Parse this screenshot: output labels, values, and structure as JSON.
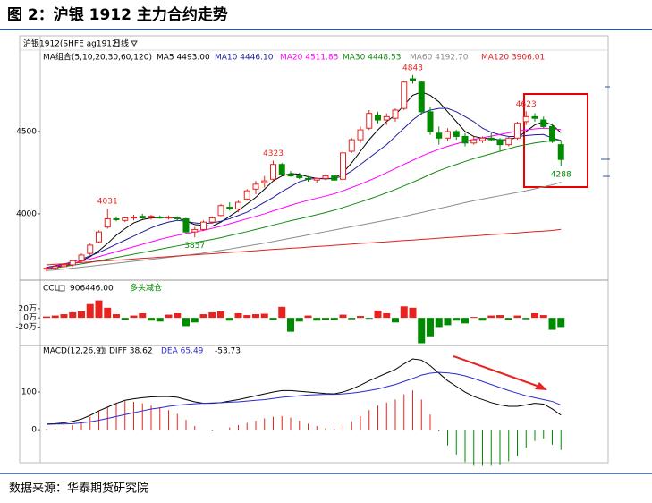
{
  "figure_title": "图 2：沪银 1912 主力合约走势",
  "source": "数据来源：华泰期货研究院",
  "chart_data": [
    {
      "type": "candlestick",
      "header": "沪银1912(SHFE ag1912)",
      "period": "日线",
      "legend_title": "MA组合(5,10,20,30,60,120)",
      "up_color": "#e8231e",
      "down_color": "#008a00",
      "open": [
        3665,
        3670,
        3680,
        3690,
        3715,
        3760,
        3830,
        3920,
        3970,
        3960,
        3975,
        3985,
        3980,
        3980,
        3975,
        3975,
        3970,
        3890,
        3905,
        3950,
        3990,
        4040,
        4030,
        4090,
        4150,
        4190,
        4210,
        4300,
        4240,
        4230,
        4215,
        4205,
        4215,
        4230,
        4210,
        4380,
        4450,
        4520,
        4600,
        4570,
        4580,
        4640,
        4820,
        4800,
        4620,
        4490,
        4460,
        4500,
        4470,
        4430,
        4445,
        4460,
        4450,
        4420,
        4460,
        4560,
        4590,
        4570,
        4530,
        4420
      ],
      "high": [
        3680,
        3690,
        3700,
        3720,
        3760,
        3820,
        3900,
        4031,
        3985,
        3980,
        3995,
        4000,
        3995,
        3990,
        3990,
        3985,
        3975,
        3920,
        3960,
        3985,
        4060,
        4070,
        4080,
        4150,
        4200,
        4230,
        4323,
        4310,
        4260,
        4250,
        4230,
        4220,
        4240,
        4240,
        4380,
        4460,
        4530,
        4630,
        4620,
        4610,
        4640,
        4810,
        4843,
        4810,
        4650,
        4530,
        4520,
        4510,
        4490,
        4470,
        4470,
        4490,
        4460,
        4470,
        4560,
        4623,
        4610,
        4590,
        4550,
        4440
      ],
      "low": [
        3650,
        3655,
        3670,
        3680,
        3705,
        3750,
        3820,
        3910,
        3955,
        3950,
        3960,
        3970,
        3965,
        3970,
        3965,
        3960,
        3880,
        3857,
        3895,
        3940,
        3985,
        4020,
        4010,
        4080,
        4120,
        4160,
        4200,
        4230,
        4225,
        4210,
        4195,
        4190,
        4205,
        4200,
        4200,
        4370,
        4430,
        4510,
        4550,
        4540,
        4560,
        4630,
        4790,
        4600,
        4480,
        4420,
        4440,
        4450,
        4410,
        4420,
        4430,
        4440,
        4380,
        4410,
        4450,
        4540,
        4560,
        4520,
        4430,
        4288
      ],
      "close": [
        3670,
        3680,
        3690,
        3715,
        3750,
        3810,
        3890,
        3970,
        3965,
        3975,
        3980,
        3975,
        3985,
        3975,
        3980,
        3970,
        3890,
        3905,
        3950,
        3975,
        4050,
        4030,
        4070,
        4140,
        4180,
        4200,
        4300,
        4240,
        4230,
        4220,
        4210,
        4215,
        4230,
        4205,
        4370,
        4450,
        4510,
        4610,
        4570,
        4590,
        4630,
        4800,
        4810,
        4620,
        4500,
        4460,
        4500,
        4470,
        4430,
        4450,
        4460,
        4450,
        4420,
        4460,
        4550,
        4590,
        4580,
        4530,
        4440,
        4330
      ],
      "labeled_points": [
        {
          "index": 7,
          "field": "high"
        },
        {
          "index": 17,
          "field": "low"
        },
        {
          "index": 26,
          "field": "high"
        },
        {
          "index": 42,
          "field": "high"
        },
        {
          "index": 55,
          "field": "high"
        },
        {
          "index": 59,
          "field": "low"
        }
      ],
      "series": [
        {
          "name": "MA5 4493.00",
          "color": "#000000",
          "values": [
            3670,
            3675,
            3685,
            3695,
            3715,
            3740,
            3775,
            3820,
            3870,
            3910,
            3945,
            3965,
            3975,
            3978,
            3978,
            3975,
            3955,
            3935,
            3930,
            3925,
            3950,
            3985,
            4020,
            4060,
            4100,
            4150,
            4200,
            4230,
            4245,
            4240,
            4225,
            4215,
            4212,
            4215,
            4250,
            4310,
            4380,
            4450,
            4510,
            4560,
            4600,
            4660,
            4720,
            4740,
            4720,
            4680,
            4620,
            4560,
            4500,
            4470,
            4460,
            4455,
            4450,
            4450,
            4465,
            4500,
            4540,
            4560,
            4540,
            4493
          ]
        },
        {
          "name": "MA10 4446.10",
          "color": "#1c1c9c",
          "values": [
            3675,
            3685,
            3695,
            3710,
            3725,
            3745,
            3765,
            3790,
            3815,
            3840,
            3865,
            3890,
            3915,
            3935,
            3950,
            3960,
            3955,
            3945,
            3940,
            3945,
            3955,
            3970,
            3990,
            4010,
            4040,
            4070,
            4100,
            4135,
            4165,
            4195,
            4210,
            4215,
            4215,
            4215,
            4230,
            4260,
            4300,
            4340,
            4380,
            4420,
            4470,
            4520,
            4570,
            4610,
            4630,
            4640,
            4640,
            4620,
            4590,
            4560,
            4520,
            4495,
            4480,
            4470,
            4470,
            4475,
            4480,
            4482,
            4460,
            4446.1
          ]
        },
        {
          "name": "MA20 4511.85",
          "color": "#ff00ff",
          "values": [
            3670,
            3680,
            3690,
            3700,
            3712,
            3725,
            3740,
            3755,
            3770,
            3785,
            3800,
            3815,
            3830,
            3845,
            3858,
            3870,
            3880,
            3890,
            3900,
            3912,
            3925,
            3940,
            3955,
            3970,
            3985,
            4000,
            4018,
            4035,
            4052,
            4068,
            4082,
            4095,
            4108,
            4122,
            4140,
            4160,
            4180,
            4202,
            4225,
            4250,
            4275,
            4300,
            4325,
            4350,
            4372,
            4392,
            4410,
            4425,
            4440,
            4452,
            4462,
            4472,
            4482,
            4492,
            4502,
            4510,
            4516,
            4520,
            4516,
            4511.85
          ]
        },
        {
          "name": "MA30 4448.53",
          "color": "#138a13",
          "values": [
            3665,
            3672,
            3680,
            3688,
            3696,
            3705,
            3715,
            3725,
            3735,
            3745,
            3755,
            3765,
            3775,
            3785,
            3795,
            3805,
            3815,
            3825,
            3835,
            3845,
            3855,
            3868,
            3880,
            3892,
            3905,
            3918,
            3932,
            3945,
            3958,
            3970,
            3982,
            3995,
            4008,
            4022,
            4038,
            4055,
            4072,
            4090,
            4108,
            4128,
            4148,
            4170,
            4192,
            4215,
            4240,
            4262,
            4282,
            4300,
            4318,
            4335,
            4350,
            4365,
            4380,
            4395,
            4410,
            4420,
            4430,
            4438,
            4444,
            4448.53
          ]
        },
        {
          "name": "MA60 4192.70",
          "color": "#8c8c8c",
          "values": [
            3655,
            3660,
            3665,
            3670,
            3676,
            3682,
            3688,
            3694,
            3700,
            3706,
            3712,
            3718,
            3724,
            3730,
            3736,
            3742,
            3748,
            3755,
            3762,
            3770,
            3778,
            3786,
            3795,
            3804,
            3813,
            3822,
            3832,
            3842,
            3852,
            3862,
            3872,
            3882,
            3892,
            3902,
            3912,
            3922,
            3932,
            3942,
            3952,
            3962,
            3972,
            3984,
            3996,
            4008,
            4020,
            4032,
            4044,
            4056,
            4068,
            4080,
            4090,
            4100,
            4110,
            4120,
            4130,
            4140,
            4152,
            4164,
            4176,
            4192.7
          ]
        },
        {
          "name": "MA120 3906.01",
          "color": "#e02020",
          "values": [
            3690,
            3694,
            3697,
            3701,
            3704,
            3708,
            3712,
            3715,
            3719,
            3722,
            3726,
            3730,
            3733,
            3737,
            3740,
            3744,
            3748,
            3751,
            3755,
            3758,
            3762,
            3766,
            3769,
            3773,
            3776,
            3780,
            3784,
            3787,
            3791,
            3794,
            3798,
            3802,
            3805,
            3809,
            3812,
            3816,
            3820,
            3823,
            3827,
            3830,
            3834,
            3838,
            3841,
            3845,
            3848,
            3852,
            3856,
            3859,
            3863,
            3866,
            3870,
            3874,
            3877,
            3881,
            3884,
            3888,
            3892,
            3895,
            3899,
            3906.01
          ]
        }
      ],
      "ylim": [
        3641,
        5081
      ],
      "yticks": [
        4000,
        4500
      ]
    },
    {
      "type": "bar",
      "header": "CCL",
      "header_value": "906446.00",
      "annotation": "多头减仓",
      "up_color": "#e8231e",
      "down_color": "#008a00",
      "values": [
        3,
        5,
        8,
        12,
        14,
        30,
        38,
        22,
        8,
        -4,
        5,
        10,
        -6,
        -8,
        7,
        10,
        -18,
        -10,
        8,
        12,
        14,
        -6,
        10,
        6,
        8,
        9,
        -5,
        24,
        -30,
        -8,
        5,
        -6,
        -4,
        -5,
        7,
        -3,
        4,
        -2,
        16,
        10,
        -10,
        25,
        22,
        -55,
        -40,
        -20,
        -16,
        -6,
        -12,
        2,
        -6,
        5,
        6,
        -4,
        5,
        -3,
        10,
        6,
        -26,
        -20
      ],
      "ylim": [
        -56,
        76
      ],
      "yticks": [
        {
          "value": 20,
          "label": "20万"
        },
        {
          "value": 0,
          "label": "0万"
        },
        {
          "value": -20,
          "label": "-20万"
        }
      ]
    },
    {
      "type": "macd",
      "header": "MACD(12,26,9)",
      "up_color": "#e8231e",
      "down_color": "#008a00",
      "series": [
        {
          "name": "DIFF 38.62",
          "color": "#000000",
          "values": [
            15,
            16,
            18,
            22,
            28,
            38,
            50,
            60,
            70,
            78,
            82,
            85,
            87,
            88,
            88,
            86,
            80,
            74,
            70,
            70,
            72,
            76,
            80,
            85,
            90,
            95,
            100,
            104,
            104,
            102,
            100,
            98,
            96,
            95,
            100,
            108,
            118,
            130,
            140,
            150,
            160,
            175,
            188,
            185,
            170,
            150,
            130,
            115,
            100,
            88,
            80,
            72,
            66,
            62,
            62,
            66,
            70,
            68,
            55,
            38.62
          ]
        },
        {
          "name": "DEA 65.49",
          "color": "#2b2bd0",
          "values": [
            14,
            15,
            15,
            16,
            18,
            21,
            25,
            30,
            35,
            40,
            45,
            50,
            55,
            58,
            62,
            65,
            67,
            69,
            70,
            71,
            72,
            73,
            74,
            76,
            78,
            80,
            83,
            86,
            88,
            90,
            92,
            93,
            94,
            94,
            95,
            97,
            100,
            104,
            108,
            114,
            120,
            128,
            136,
            145,
            150,
            152,
            151,
            148,
            143,
            136,
            128,
            120,
            112,
            104,
            97,
            90,
            85,
            80,
            75,
            65.49
          ]
        }
      ],
      "histogram": {
        "name": "-53.73",
        "values": [
          2,
          2,
          6,
          12,
          20,
          34,
          50,
          60,
          70,
          76,
          74,
          70,
          64,
          60,
          52,
          42,
          26,
          10,
          0,
          -2,
          0,
          6,
          12,
          18,
          24,
          30,
          34,
          36,
          32,
          24,
          16,
          10,
          4,
          2,
          10,
          22,
          36,
          52,
          64,
          72,
          80,
          94,
          104,
          80,
          40,
          -4,
          -42,
          -66,
          -86,
          -96,
          -96,
          -96,
          -92,
          -84,
          -70,
          -48,
          -30,
          -24,
          -40,
          -53.73
        ]
      },
      "ylim": [
        -83,
        219
      ],
      "yticks": [
        0,
        100
      ]
    }
  ]
}
